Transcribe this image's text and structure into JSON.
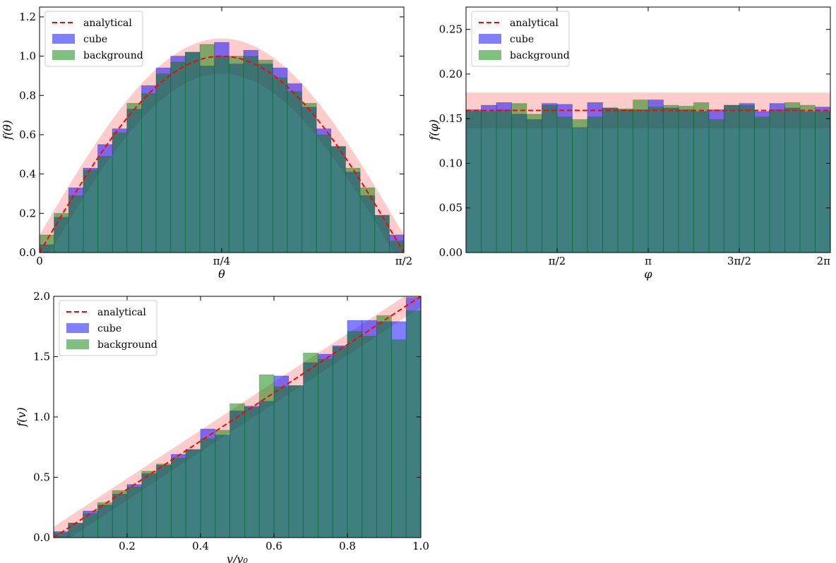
{
  "chart_data": [
    {
      "id": "theta",
      "type": "bar",
      "xlabel": "θ",
      "ylabel": "f(θ)",
      "xlim": [
        0,
        1.5708
      ],
      "ylim": [
        0,
        1.25
      ],
      "xticks": [
        {
          "value": 0,
          "label": "0"
        },
        {
          "value": 0.7854,
          "label": "π/4"
        },
        {
          "value": 1.5708,
          "label": "π/2"
        }
      ],
      "yticks": [
        {
          "value": 0.0,
          "label": "0.0"
        },
        {
          "value": 0.2,
          "label": "0.2"
        },
        {
          "value": 0.4,
          "label": "0.4"
        },
        {
          "value": 0.6,
          "label": "0.6"
        },
        {
          "value": 0.8,
          "label": "0.8"
        },
        {
          "value": 1.0,
          "label": "1.0"
        },
        {
          "value": 1.2,
          "label": "1.2"
        }
      ],
      "analytical": "sin2x",
      "band": 0.09,
      "legend_position": "top-left",
      "series": [
        {
          "name": "cube",
          "values": [
            0.04,
            0.18,
            0.33,
            0.43,
            0.55,
            0.63,
            0.73,
            0.85,
            0.94,
            1.0,
            1.02,
            0.95,
            1.07,
            0.96,
            1.03,
            0.96,
            0.94,
            0.86,
            0.74,
            0.63,
            0.54,
            0.41,
            0.29,
            0.19,
            0.09
          ]
        },
        {
          "name": "background",
          "values": [
            0.09,
            0.2,
            0.29,
            0.42,
            0.49,
            0.61,
            0.76,
            0.81,
            0.91,
            0.97,
            1.02,
            1.06,
            1.0,
            1.0,
            1.0,
            0.98,
            0.89,
            0.82,
            0.76,
            0.6,
            0.54,
            0.43,
            0.33,
            0.19,
            0.06
          ]
        }
      ],
      "legend": [
        "analytical",
        "cube",
        "background"
      ]
    },
    {
      "id": "phi",
      "type": "bar",
      "xlabel": "φ",
      "ylabel": "f(φ)",
      "xlim": [
        0,
        6.2832
      ],
      "ylim": [
        0,
        0.275
      ],
      "xticks": [
        {
          "value": 1.5708,
          "label": "π/2"
        },
        {
          "value": 3.1416,
          "label": "π"
        },
        {
          "value": 4.7124,
          "label": "3π/2"
        },
        {
          "value": 6.2832,
          "label": "2π"
        }
      ],
      "yticks": [
        {
          "value": 0.0,
          "label": "0.00"
        },
        {
          "value": 0.05,
          "label": "0.05"
        },
        {
          "value": 0.1,
          "label": "0.10"
        },
        {
          "value": 0.15,
          "label": "0.15"
        },
        {
          "value": 0.2,
          "label": "0.20"
        },
        {
          "value": 0.25,
          "label": "0.25"
        }
      ],
      "analytical": "constant",
      "analytical_value": 0.1592,
      "band": 0.02,
      "legend_position": "top-left",
      "series": [
        {
          "name": "cube",
          "values": [
            0.16,
            0.165,
            0.168,
            0.155,
            0.149,
            0.167,
            0.166,
            0.14,
            0.168,
            0.162,
            0.16,
            0.16,
            0.171,
            0.162,
            0.16,
            0.158,
            0.16,
            0.165,
            0.167,
            0.158,
            0.167,
            0.162,
            0.158,
            0.163
          ]
        },
        {
          "name": "background",
          "values": [
            0.158,
            0.158,
            0.16,
            0.167,
            0.155,
            0.165,
            0.152,
            0.149,
            0.152,
            0.162,
            0.161,
            0.171,
            0.163,
            0.165,
            0.164,
            0.168,
            0.149,
            0.165,
            0.165,
            0.152,
            0.16,
            0.168,
            0.165,
            0.158
          ]
        }
      ],
      "legend": [
        "analytical",
        "cube",
        "background"
      ]
    },
    {
      "id": "velocity",
      "type": "bar",
      "xlabel": "v/v₀",
      "ylabel": "f(v)",
      "xlim": [
        0,
        1.0
      ],
      "ylim": [
        0,
        2.0
      ],
      "xticks": [
        {
          "value": 0.2,
          "label": "0.2"
        },
        {
          "value": 0.4,
          "label": "0.4"
        },
        {
          "value": 0.6,
          "label": "0.6"
        },
        {
          "value": 0.8,
          "label": "0.8"
        },
        {
          "value": 1.0,
          "label": "1.0"
        }
      ],
      "yticks": [
        {
          "value": 0.0,
          "label": "0.0"
        },
        {
          "value": 0.5,
          "label": "0.5"
        },
        {
          "value": 1.0,
          "label": "1.0"
        },
        {
          "value": 1.5,
          "label": "1.5"
        },
        {
          "value": 2.0,
          "label": "2.0"
        }
      ],
      "analytical": "linear2x",
      "band": 0.09,
      "legend_position": "top-left",
      "series": [
        {
          "name": "cube",
          "values": [
            0.05,
            0.12,
            0.22,
            0.27,
            0.36,
            0.44,
            0.53,
            0.6,
            0.69,
            0.73,
            0.9,
            0.85,
            1.05,
            1.09,
            1.13,
            1.34,
            1.26,
            1.45,
            1.52,
            1.59,
            1.8,
            1.8,
            1.79,
            1.79,
            1.99
          ]
        },
        {
          "name": "background",
          "values": [
            0.04,
            0.12,
            0.2,
            0.29,
            0.39,
            0.42,
            0.55,
            0.61,
            0.66,
            0.73,
            0.82,
            0.89,
            1.11,
            1.08,
            1.35,
            1.25,
            1.26,
            1.53,
            1.48,
            1.58,
            1.71,
            1.67,
            1.84,
            1.64,
            1.88
          ]
        }
      ],
      "legend": [
        "analytical",
        "cube",
        "background"
      ]
    }
  ],
  "colors": {
    "cube": "#0000ff",
    "background": "#008000",
    "analytical": "#ff0000",
    "band": "#ff9999",
    "frame": "#000000"
  }
}
